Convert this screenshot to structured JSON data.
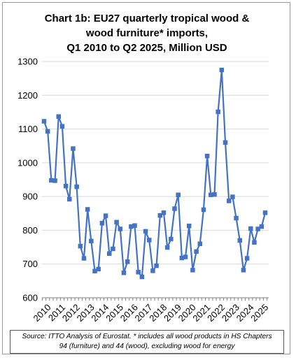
{
  "chart_data": {
    "type": "line",
    "title": [
      "Chart 1b: EU27 quarterly tropical wood &",
      "wood furniture* imports,",
      "Q1 2010 to Q2 2025, Million USD"
    ],
    "xlabel": "",
    "ylabel": "",
    "ylim": [
      600,
      1300
    ],
    "yticks": [
      600,
      700,
      800,
      900,
      1000,
      1100,
      1200,
      1300
    ],
    "xticks": [
      "2010",
      "2011",
      "2012",
      "2013",
      "2014",
      "2015",
      "2016",
      "2017",
      "2018",
      "2019",
      "2020",
      "2021",
      "2022",
      "2023",
      "2024",
      "2025"
    ],
    "grid": true,
    "legend": false,
    "color": "#4472C4",
    "series": [
      {
        "x": [
          "2010 Q1",
          "2010 Q2",
          "2010 Q3",
          "2010 Q4",
          "2011 Q1",
          "2011 Q2",
          "2011 Q3",
          "2011 Q4",
          "2012 Q1",
          "2012 Q2",
          "2012 Q3",
          "2012 Q4",
          "2013 Q1",
          "2013 Q2",
          "2013 Q3",
          "2013 Q4",
          "2014 Q1",
          "2014 Q2",
          "2014 Q3",
          "2014 Q4",
          "2015 Q1",
          "2015 Q2",
          "2015 Q3",
          "2015 Q4",
          "2016 Q1",
          "2016 Q2",
          "2016 Q3",
          "2016 Q4",
          "2017 Q1",
          "2017 Q2",
          "2017 Q3",
          "2017 Q4",
          "2018 Q1",
          "2018 Q2",
          "2018 Q3",
          "2018 Q4",
          "2019 Q1",
          "2019 Q2",
          "2019 Q3",
          "2019 Q4",
          "2020 Q1",
          "2020 Q2",
          "2020 Q3",
          "2020 Q4",
          "2021 Q1",
          "2021 Q2",
          "2021 Q3",
          "2021 Q4",
          "2022 Q1",
          "2022 Q2",
          "2022 Q3",
          "2022 Q4",
          "2023 Q1",
          "2023 Q2",
          "2023 Q3",
          "2023 Q4",
          "2024 Q1",
          "2024 Q2",
          "2024 Q3",
          "2024 Q4",
          "2025 Q1",
          "2025 Q2"
        ],
        "values": [
          1123,
          1093,
          948,
          947,
          1137,
          1108,
          931,
          892,
          1042,
          929,
          753,
          717,
          862,
          768,
          679,
          685,
          821,
          843,
          731,
          745,
          824,
          804,
          674,
          707,
          811,
          814,
          676,
          662,
          797,
          771,
          680,
          695,
          844,
          852,
          749,
          774,
          864,
          905,
          718,
          721,
          813,
          682,
          737,
          760,
          861,
          1020,
          905,
          906,
          1151,
          1275,
          1060,
          887,
          899,
          836,
          770,
          682,
          717,
          805,
          764,
          804,
          811,
          852
        ]
      }
    ],
    "source": [
      "Source: ITTO Analysis of Eurostat. * includes all wood products in HS Chapters",
      "94 (furniture) and 44 (wood), excluding wood for energy"
    ]
  }
}
